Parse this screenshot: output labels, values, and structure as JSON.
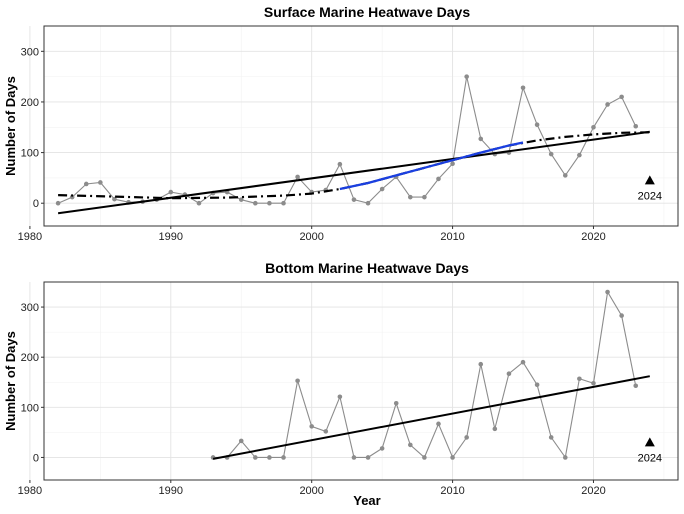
{
  "chart_data": [
    {
      "type": "line",
      "title": "Surface Marine Heatwave Days",
      "xlabel": "",
      "ylabel": "Number of Days",
      "xlim": [
        1981,
        2026
      ],
      "ylim": [
        -45,
        350
      ],
      "xticks": [
        1980,
        1990,
        2000,
        2010,
        2020
      ],
      "yticks": [
        0,
        100,
        200,
        300
      ],
      "grid": true,
      "series": [
        {
          "name": "annual days",
          "style": "grey line with points",
          "x": [
            1982,
            1983,
            1984,
            1985,
            1986,
            1987,
            1988,
            1989,
            1990,
            1991,
            1992,
            1993,
            1994,
            1995,
            1996,
            1997,
            1998,
            1999,
            2000,
            2001,
            2002,
            2003,
            2004,
            2005,
            2006,
            2007,
            2008,
            2009,
            2010,
            2011,
            2012,
            2013,
            2014,
            2015,
            2016,
            2017,
            2018,
            2019,
            2020,
            2021,
            2022,
            2023
          ],
          "values": [
            0,
            12,
            38,
            41,
            8,
            2,
            3,
            7,
            22,
            17,
            0,
            20,
            22,
            7,
            0,
            0,
            0,
            52,
            22,
            26,
            77,
            7,
            0,
            28,
            52,
            12,
            12,
            48,
            78,
            250,
            127,
            97,
            100,
            228,
            155,
            97,
            55,
            95,
            150,
            195,
            210,
            152
          ]
        },
        {
          "name": "linear trend",
          "style": "solid black",
          "x": [
            1982,
            2024
          ],
          "values": [
            -20,
            141
          ]
        },
        {
          "name": "smoothed trend",
          "style": "dash-dot black",
          "x": [
            1982,
            1986,
            1990,
            1994,
            1998,
            2000,
            2002,
            2004,
            2006,
            2008,
            2010,
            2012,
            2014,
            2016,
            2018,
            2020,
            2022,
            2024
          ],
          "values": [
            16,
            13,
            10,
            11,
            15,
            19,
            28,
            40,
            55,
            70,
            85,
            100,
            114,
            124,
            131,
            136,
            139,
            140
          ]
        },
        {
          "name": "significant segment",
          "style": "solid blue",
          "x": [
            2002,
            2004,
            2006,
            2008,
            2010,
            2012,
            2014,
            2015
          ],
          "values": [
            28,
            40,
            55,
            70,
            85,
            100,
            114,
            120
          ]
        },
        {
          "name": "2024",
          "style": "triangle marker",
          "x": [
            2024
          ],
          "values": [
            45
          ]
        }
      ],
      "annotations": [
        {
          "text": "2024",
          "x": 2024,
          "y": 45
        }
      ]
    },
    {
      "type": "line",
      "title": "Bottom Marine Heatwave Days",
      "xlabel": "Year",
      "ylabel": "Number of Days",
      "xlim": [
        1981,
        2026
      ],
      "ylim": [
        -45,
        350
      ],
      "xticks": [
        1980,
        1990,
        2000,
        2010,
        2020
      ],
      "yticks": [
        0,
        100,
        200,
        300
      ],
      "grid": true,
      "series": [
        {
          "name": "annual days",
          "style": "grey line with points",
          "x": [
            1993,
            1994,
            1995,
            1996,
            1997,
            1998,
            1999,
            2000,
            2001,
            2002,
            2003,
            2004,
            2005,
            2006,
            2007,
            2008,
            2009,
            2010,
            2011,
            2012,
            2013,
            2014,
            2015,
            2016,
            2017,
            2018,
            2019,
            2020,
            2021,
            2022,
            2023
          ],
          "values": [
            0,
            0,
            33,
            0,
            0,
            0,
            153,
            62,
            52,
            121,
            0,
            0,
            18,
            108,
            25,
            0,
            67,
            0,
            40,
            186,
            57,
            167,
            190,
            145,
            40,
            0,
            157,
            148,
            330,
            283,
            143
          ]
        },
        {
          "name": "linear trend",
          "style": "solid black",
          "x": [
            1993,
            2024
          ],
          "values": [
            -3,
            162
          ]
        },
        {
          "name": "2024",
          "style": "triangle marker",
          "x": [
            2024
          ],
          "values": [
            30
          ]
        }
      ],
      "annotations": [
        {
          "text": "2024",
          "x": 2024,
          "y": 30
        }
      ]
    }
  ]
}
